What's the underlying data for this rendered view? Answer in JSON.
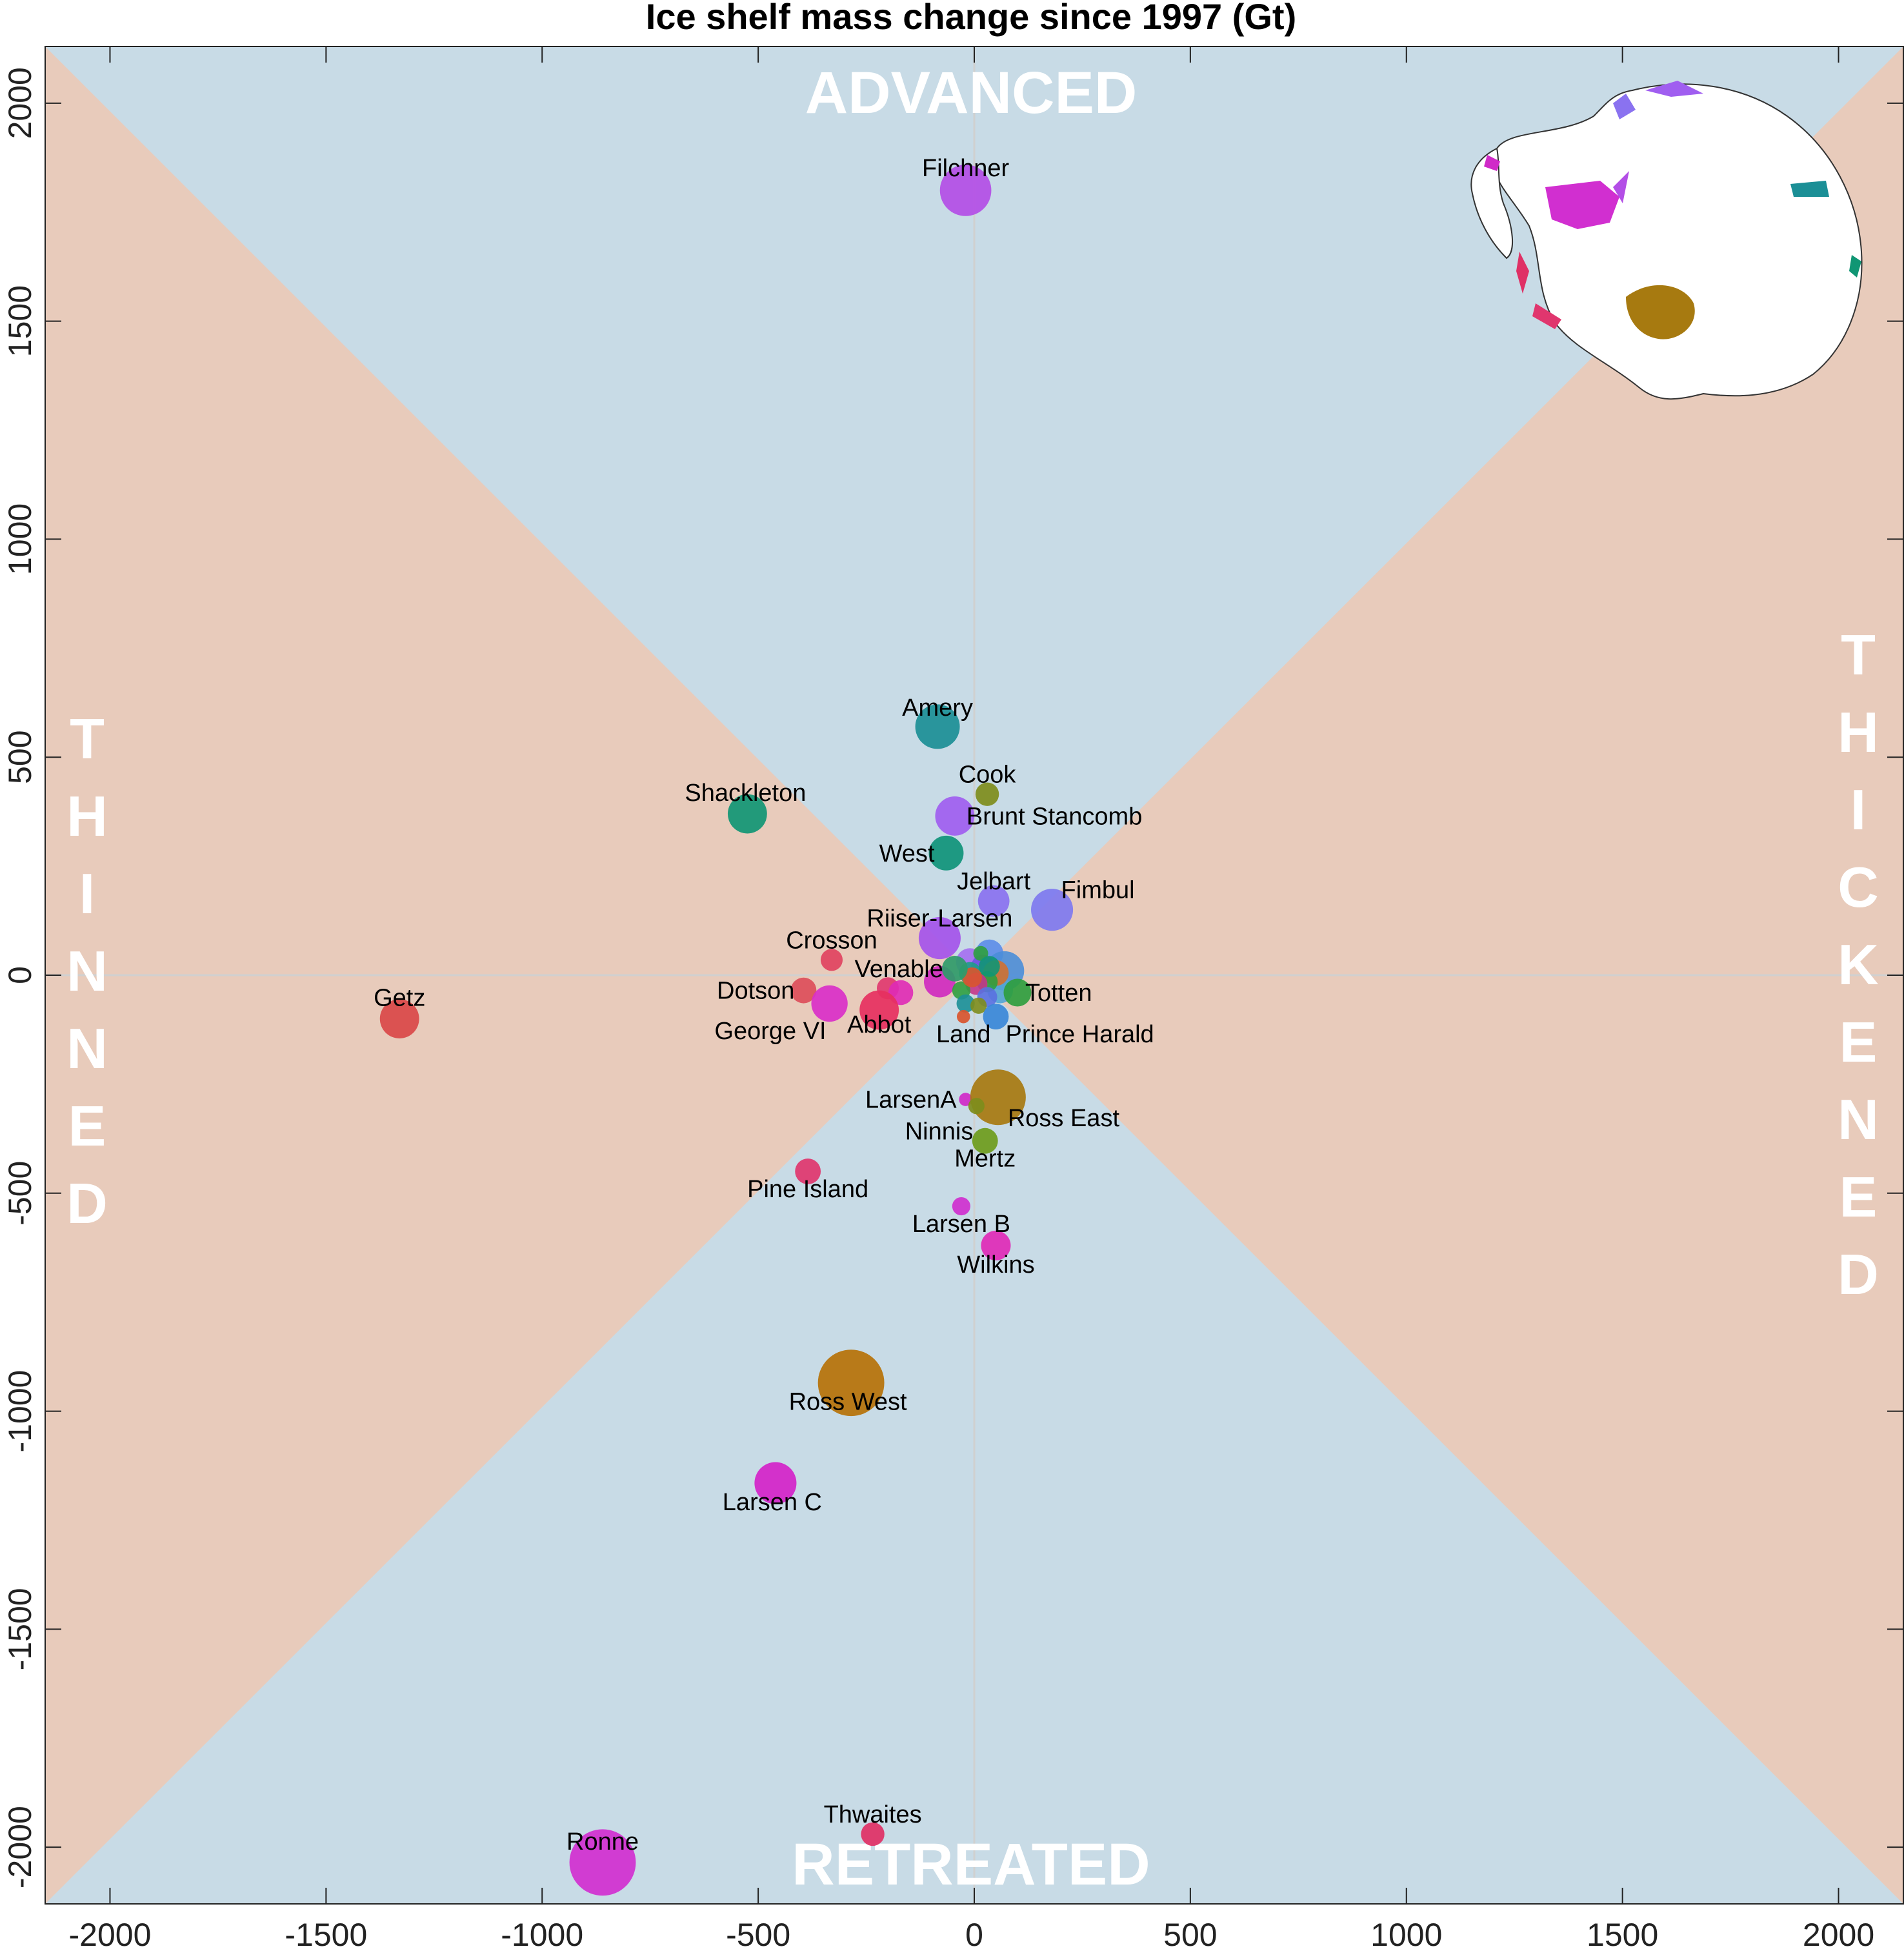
{
  "chart_data": {
    "type": "scatter",
    "title": "Ice shelf mass change since 1997 (Gt)",
    "xlim": [
      -2150,
      2150
    ],
    "ylim": [
      -2130,
      2130
    ],
    "xticks": [
      -2000,
      -1500,
      -1000,
      -500,
      0,
      500,
      1000,
      1500,
      2000
    ],
    "yticks": [
      -2000,
      -1500,
      -1000,
      -500,
      0,
      500,
      1000,
      1500,
      2000
    ],
    "region_labels": {
      "top": "ADVANCED",
      "bottom": "RETREATED",
      "left": "THINNED",
      "right": "THICKENED"
    },
    "region_colors": {
      "advance_retreat": "#c8dbe6",
      "thin_thicken": "#e8cbbb",
      "zero_lines": "#d0d0d0"
    },
    "points": [
      {
        "name": "Filchner",
        "x": -20,
        "y": 1800,
        "size": 1200,
        "color": "#b34ee6"
      },
      {
        "name": "Amery",
        "x": -85,
        "y": 570,
        "size": 900,
        "color": "#1b8f96"
      },
      {
        "name": "Cook",
        "x": 30,
        "y": 415,
        "size": 250,
        "color": "#7e8d1c"
      },
      {
        "name": "Shackleton",
        "x": -525,
        "y": 370,
        "size": 700,
        "color": "#109674"
      },
      {
        "name": "Brunt Stancomb",
        "x": -45,
        "y": 365,
        "size": 700,
        "color": "#a05ef0"
      },
      {
        "name": "West",
        "x": -65,
        "y": 280,
        "size": 550,
        "color": "#0f9479"
      },
      {
        "name": "Jelbart",
        "x": 45,
        "y": 170,
        "size": 450,
        "color": "#8a72f0"
      },
      {
        "name": "Fimbul",
        "x": 180,
        "y": 150,
        "size": 800,
        "color": "#7e79ef"
      },
      {
        "name": "Riiser-Larsen",
        "x": -80,
        "y": 85,
        "size": 800,
        "color": "#a454ea"
      },
      {
        "name": "Crosson",
        "x": -330,
        "y": 35,
        "size": 220,
        "color": "#e0435f"
      },
      {
        "name": "Venable",
        "x": -45,
        "y": 15,
        "size": 300,
        "color": "#2e9b6a"
      },
      {
        "name": "Dotson",
        "x": -395,
        "y": -35,
        "size": 300,
        "color": "#dc4e5a"
      },
      {
        "name": "Totten",
        "x": 100,
        "y": -40,
        "size": 350,
        "color": "#2f9e3f"
      },
      {
        "name": "George VI",
        "x": -335,
        "y": -65,
        "size": 600,
        "color": "#d92fc8"
      },
      {
        "name": "Abbot",
        "x": -220,
        "y": -80,
        "size": 700,
        "color": "#e63060"
      },
      {
        "name": "Getz",
        "x": -1330,
        "y": -100,
        "size": 700,
        "color": "#d94848"
      },
      {
        "name": "Land",
        "x": -25,
        "y": -95,
        "size": 80,
        "color": "#d9552e"
      },
      {
        "name": "Prince Harald",
        "x": 50,
        "y": -95,
        "size": 300,
        "color": "#3a88d8"
      },
      {
        "name": "LarsenA",
        "x": -20,
        "y": -285,
        "size": 80,
        "color": "#d02ac8"
      },
      {
        "name": "Ross East",
        "x": 55,
        "y": -280,
        "size": 1400,
        "color": "#a77a10"
      },
      {
        "name": "Ninnis",
        "x": 5,
        "y": -300,
        "size": 120,
        "color": "#7e8d1c"
      },
      {
        "name": "Mertz",
        "x": 25,
        "y": -380,
        "size": 300,
        "color": "#6e9c1c"
      },
      {
        "name": "Pine Island",
        "x": -385,
        "y": -450,
        "size": 300,
        "color": "#e0366e"
      },
      {
        "name": "Larsen B",
        "x": -30,
        "y": -530,
        "size": 150,
        "color": "#cf30cf"
      },
      {
        "name": "Wilkins",
        "x": 50,
        "y": -620,
        "size": 400,
        "color": "#df2ab7"
      },
      {
        "name": "Ross West",
        "x": -285,
        "y": -935,
        "size": 2000,
        "color": "#b67208"
      },
      {
        "name": "Larsen C",
        "x": -460,
        "y": -1165,
        "size": 800,
        "color": "#d423c9"
      },
      {
        "name": "Thwaites",
        "x": -235,
        "y": -1970,
        "size": 250,
        "color": "#df3065"
      },
      {
        "name": "Ronne",
        "x": -860,
        "y": -2035,
        "size": 2000,
        "color": "#d12fd0"
      }
    ],
    "cluster_points": [
      {
        "x": -80,
        "y": -15,
        "size": 450,
        "color": "#cf28c0"
      },
      {
        "x": -200,
        "y": -30,
        "size": 220,
        "color": "#e0366e"
      },
      {
        "x": -170,
        "y": -40,
        "size": 280,
        "color": "#df2ab7"
      },
      {
        "x": -10,
        "y": 30,
        "size": 350,
        "color": "#a46ef0"
      },
      {
        "x": 35,
        "y": 50,
        "size": 350,
        "color": "#5b8ce8"
      },
      {
        "x": 70,
        "y": 10,
        "size": 700,
        "color": "#4a8ed9"
      },
      {
        "x": 60,
        "y": -35,
        "size": 300,
        "color": "#52a5d6"
      },
      {
        "x": 20,
        "y": 20,
        "size": 250,
        "color": "#6a55e0"
      },
      {
        "x": -10,
        "y": 5,
        "size": 220,
        "color": "#1d9d88"
      },
      {
        "x": 50,
        "y": 5,
        "size": 300,
        "color": "#d07030"
      },
      {
        "x": 30,
        "y": -15,
        "size": 200,
        "color": "#2f9e3f"
      },
      {
        "x": 5,
        "y": -20,
        "size": 220,
        "color": "#c2358a"
      },
      {
        "x": -30,
        "y": -35,
        "size": 150,
        "color": "#2f9e3f"
      },
      {
        "x": 30,
        "y": -50,
        "size": 180,
        "color": "#5a70e0"
      },
      {
        "x": -20,
        "y": -65,
        "size": 150,
        "color": "#1b8f96"
      },
      {
        "x": 10,
        "y": -70,
        "size": 120,
        "color": "#7e8d1c"
      },
      {
        "x": 15,
        "y": 50,
        "size": 100,
        "color": "#2f9e3f"
      },
      {
        "x": -5,
        "y": -5,
        "size": 180,
        "color": "#d9552e"
      },
      {
        "x": 35,
        "y": 20,
        "size": 200,
        "color": "#109674"
      }
    ]
  }
}
